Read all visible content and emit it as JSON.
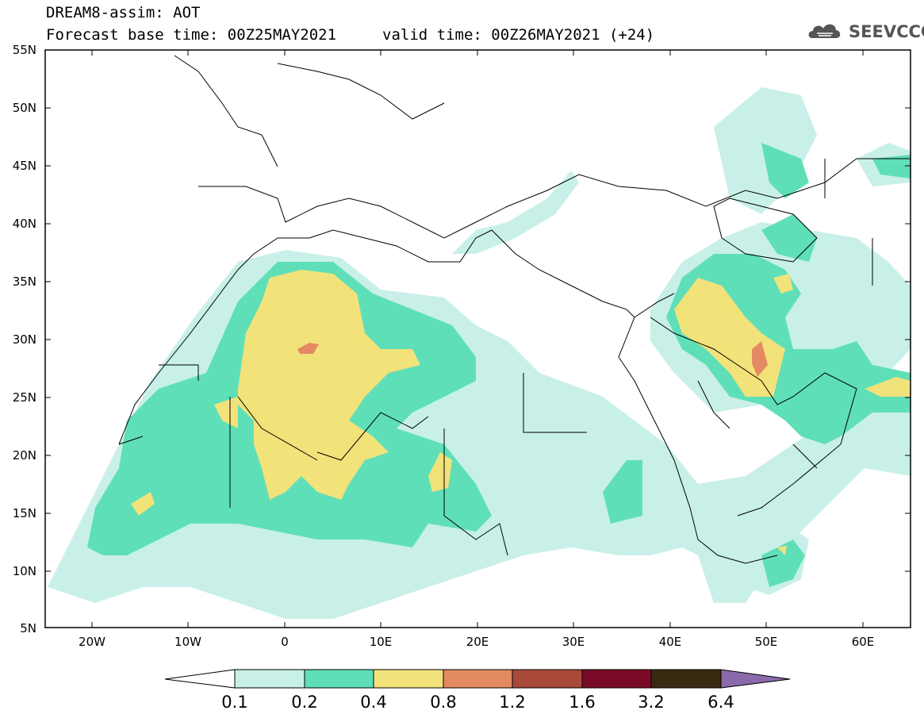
{
  "header": {
    "line1": "DREAM8-assim: AOT",
    "line2": "Forecast base time: 00Z25MAY2021",
    "valid": "valid time: 00Z26MAY2021 (+24)"
  },
  "logo": {
    "text": "SEEVCCC",
    "icon": "cloud-icon"
  },
  "map": {
    "variable": "AOT",
    "lat_labels": [
      "55N",
      "50N",
      "45N",
      "40N",
      "35N",
      "30N",
      "25N",
      "20N",
      "15N",
      "10N",
      "5N"
    ],
    "lon_labels": [
      "20W",
      "10W",
      "0",
      "10E",
      "20E",
      "30E",
      "40E",
      "50E",
      "60E"
    ],
    "lat_range": [
      5,
      55
    ],
    "lon_range": [
      -25,
      65
    ]
  },
  "colorbar": {
    "labels": [
      "0.1",
      "0.2",
      "0.4",
      "0.8",
      "1.2",
      "1.6",
      "3.2",
      "6.4"
    ],
    "colors": [
      "#ffffff",
      "#c8f0e8",
      "#5fdfb8",
      "#f2e27a",
      "#e48a62",
      "#a8493a",
      "#7a0b28",
      "#3a2a12",
      "#8a6aaa"
    ]
  }
}
